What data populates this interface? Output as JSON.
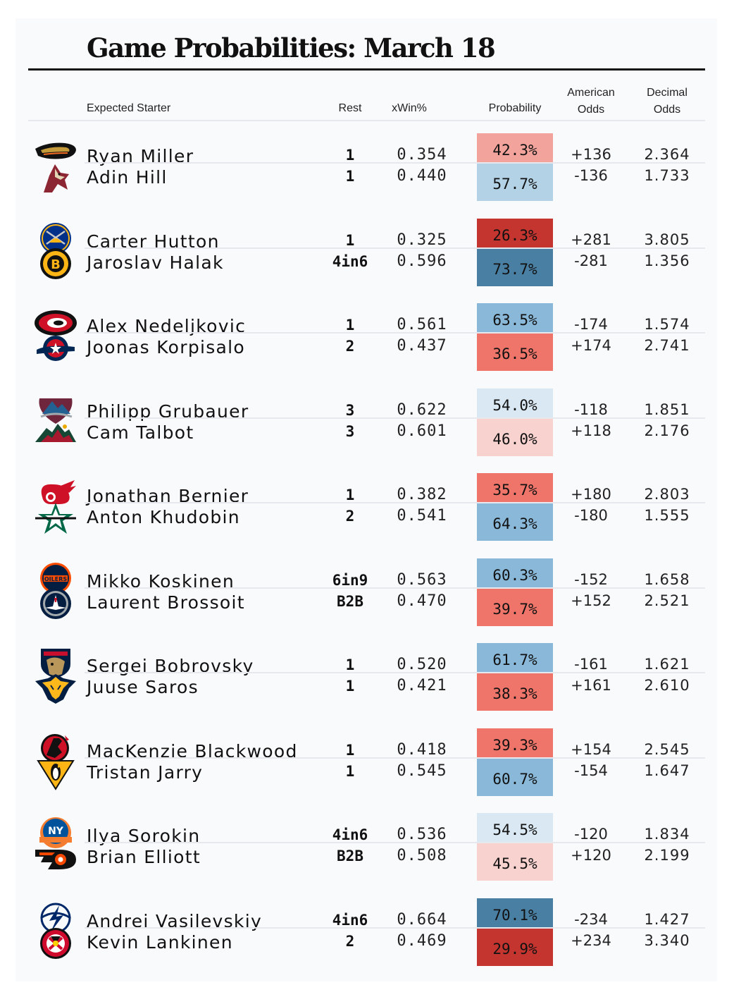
{
  "title": "Game Probabilities: March 18",
  "headers": {
    "starter": "Expected Starter",
    "rest": "Rest",
    "xwin": "xWin%",
    "probability": "Probability",
    "american": "American",
    "odds1": "Odds",
    "decimal": "Decimal",
    "odds2": "Odds"
  },
  "colors": {
    "prob_scale": {
      "70.1%": "#4a7fa4",
      "73.7%": "#4a7fa4",
      "64.3%": "#8ab8d9",
      "63.5%": "#8ab8d9",
      "61.7%": "#8ab8d9",
      "60.7%": "#8ab8d9",
      "60.3%": "#8ab8d9",
      "57.7%": "#b4d2e6",
      "54.5%": "#d9e8f3",
      "54.0%": "#d9e8f3",
      "46.0%": "#f7d2cf",
      "45.5%": "#f7d2cf",
      "42.3%": "#f2a39c",
      "39.7%": "#ef756a",
      "39.3%": "#ef756a",
      "38.3%": "#ef756a",
      "36.5%": "#ef756a",
      "35.7%": "#ef756a",
      "29.9%": "#c43530",
      "26.3%": "#c43530"
    }
  },
  "games": [
    {
      "players": [
        {
          "logo": "ducks-logo",
          "name": "Ryan Miller",
          "rest": "1",
          "xwin": "0.354",
          "prob": "42.3%",
          "american": "+136",
          "decimal": "2.364"
        },
        {
          "logo": "coyotes-logo",
          "name": "Adin Hill",
          "rest": "1",
          "xwin": "0.440",
          "prob": "57.7%",
          "american": "-136",
          "decimal": "1.733"
        }
      ]
    },
    {
      "players": [
        {
          "logo": "sabres-logo",
          "name": "Carter Hutton",
          "rest": "1",
          "xwin": "0.325",
          "prob": "26.3%",
          "american": "+281",
          "decimal": "3.805"
        },
        {
          "logo": "bruins-logo",
          "name": "Jaroslav Halak",
          "rest": "4in6",
          "xwin": "0.596",
          "prob": "73.7%",
          "american": "-281",
          "decimal": "1.356"
        }
      ]
    },
    {
      "players": [
        {
          "logo": "hurricanes-logo",
          "name": "Alex Nedeljkovic",
          "rest": "1",
          "xwin": "0.561",
          "prob": "63.5%",
          "american": "-174",
          "decimal": "1.574"
        },
        {
          "logo": "blue-jackets-logo",
          "name": "Joonas Korpisalo",
          "rest": "2",
          "xwin": "0.437",
          "prob": "36.5%",
          "american": "+174",
          "decimal": "2.741"
        }
      ]
    },
    {
      "players": [
        {
          "logo": "avalanche-logo",
          "name": "Philipp Grubauer",
          "rest": "3",
          "xwin": "0.622",
          "prob": "54.0%",
          "american": "-118",
          "decimal": "1.851"
        },
        {
          "logo": "wild-logo",
          "name": "Cam Talbot",
          "rest": "3",
          "xwin": "0.601",
          "prob": "46.0%",
          "american": "+118",
          "decimal": "2.176"
        }
      ]
    },
    {
      "players": [
        {
          "logo": "red-wings-logo",
          "name": "Jonathan Bernier",
          "rest": "1",
          "xwin": "0.382",
          "prob": "35.7%",
          "american": "+180",
          "decimal": "2.803"
        },
        {
          "logo": "stars-logo",
          "name": "Anton Khudobin",
          "rest": "2",
          "xwin": "0.541",
          "prob": "64.3%",
          "american": "-180",
          "decimal": "1.555"
        }
      ]
    },
    {
      "players": [
        {
          "logo": "oilers-logo",
          "name": "Mikko Koskinen",
          "rest": "6in9",
          "xwin": "0.563",
          "prob": "60.3%",
          "american": "-152",
          "decimal": "1.658"
        },
        {
          "logo": "jets-logo",
          "name": "Laurent Brossoit",
          "rest": "B2B",
          "xwin": "0.470",
          "prob": "39.7%",
          "american": "+152",
          "decimal": "2.521"
        }
      ]
    },
    {
      "players": [
        {
          "logo": "panthers-logo",
          "name": "Sergei Bobrovsky",
          "rest": "1",
          "xwin": "0.520",
          "prob": "61.7%",
          "american": "-161",
          "decimal": "1.621"
        },
        {
          "logo": "predators-logo",
          "name": "Juuse Saros",
          "rest": "1",
          "xwin": "0.421",
          "prob": "38.3%",
          "american": "+161",
          "decimal": "2.610"
        }
      ]
    },
    {
      "players": [
        {
          "logo": "devils-logo",
          "name": "MacKenzie Blackwood",
          "rest": "1",
          "xwin": "0.418",
          "prob": "39.3%",
          "american": "+154",
          "decimal": "2.545"
        },
        {
          "logo": "penguins-logo",
          "name": "Tristan Jarry",
          "rest": "1",
          "xwin": "0.545",
          "prob": "60.7%",
          "american": "-154",
          "decimal": "1.647"
        }
      ]
    },
    {
      "players": [
        {
          "logo": "islanders-logo",
          "name": "Ilya Sorokin",
          "rest": "4in6",
          "xwin": "0.536",
          "prob": "54.5%",
          "american": "-120",
          "decimal": "1.834"
        },
        {
          "logo": "flyers-logo",
          "name": "Brian Elliott",
          "rest": "B2B",
          "xwin": "0.508",
          "prob": "45.5%",
          "american": "+120",
          "decimal": "2.199"
        }
      ]
    },
    {
      "players": [
        {
          "logo": "lightning-logo",
          "name": "Andrei Vasilevskiy",
          "rest": "4in6",
          "xwin": "0.664",
          "prob": "70.1%",
          "american": "-234",
          "decimal": "1.427"
        },
        {
          "logo": "blackhawks-logo",
          "name": "Kevin Lankinen",
          "rest": "2",
          "xwin": "0.469",
          "prob": "29.9%",
          "american": "+234",
          "decimal": "3.340"
        }
      ]
    }
  ]
}
